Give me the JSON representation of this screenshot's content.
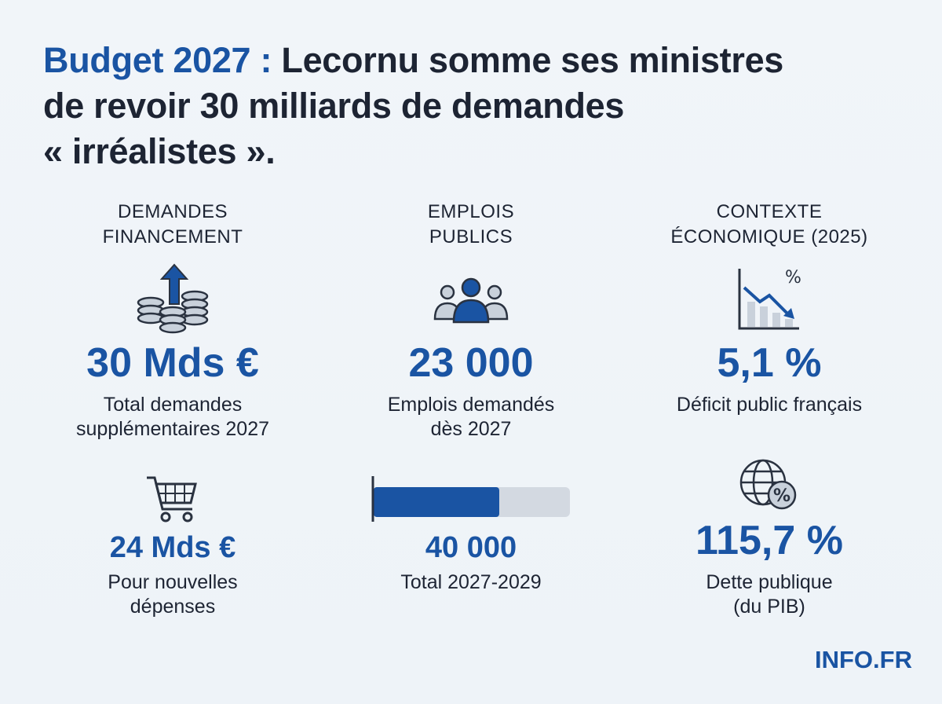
{
  "header": {
    "title_lines": [
      [
        "Budget 2027 :",
        "Lecornu somme ses ministres"
      ],
      [
        "de revoir 30 milliards de demandes"
      ],
      [
        "« irréalistes »."
      ]
    ]
  },
  "columns": [
    {
      "heading": [
        "DEMANDES",
        "FINANCEMENT"
      ],
      "stats": [
        {
          "value": "30 Mds €",
          "label": [
            "Total demandes",
            "supplémentaires 2027"
          ]
        },
        {
          "value": "24 Mds €",
          "label": [
            "Pour nouvelles",
            "dépenses"
          ]
        }
      ]
    },
    {
      "heading": [
        "EMPLOIS",
        "PUBLICS"
      ],
      "stats": [
        {
          "value": "23 000",
          "label": [
            "Emplois demandés",
            "dès 2027"
          ]
        },
        {
          "value": "40 000",
          "label": [
            "Total 2027-2029"
          ]
        }
      ]
    },
    {
      "heading": [
        "CONTEXTE",
        "ÉCONOMIQUE (2025)"
      ],
      "stats": [
        {
          "value": "5,1 %",
          "label": [
            "Déficit public français"
          ]
        },
        {
          "value": "115,7 %",
          "label": [
            "Dette publique",
            "(du PIB)"
          ]
        }
      ]
    }
  ],
  "footer": {
    "brand": "INFO.FR"
  }
}
